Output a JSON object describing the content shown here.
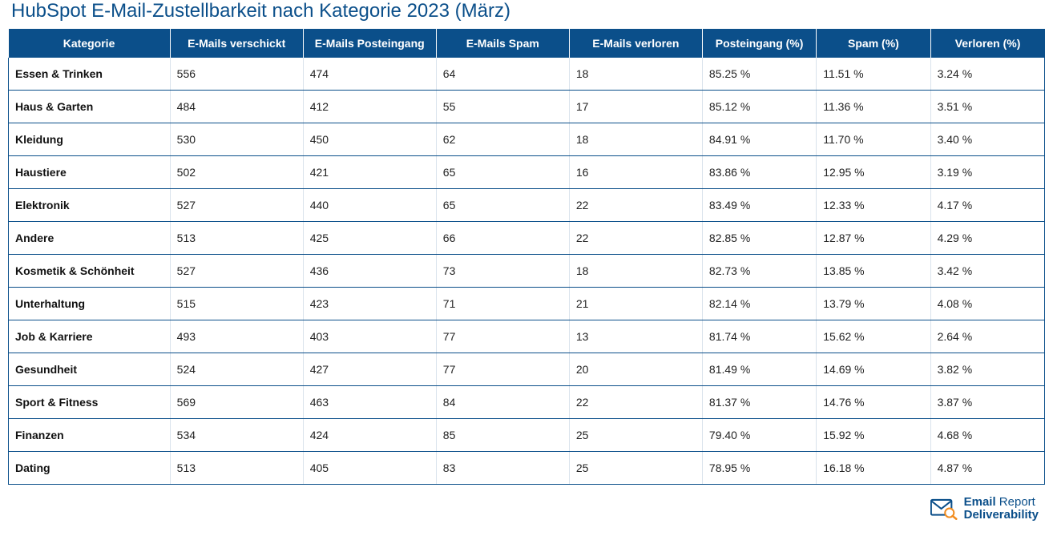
{
  "title": "HubSpot E-Mail-Zustellbarkeit nach Kategorie 2023 (März)",
  "colors": {
    "header_bg": "#0b4f8a",
    "header_text": "#ffffff",
    "title_text": "#0b4f8a",
    "row_border": "#0b4f8a",
    "cell_divider": "#d9e2ec",
    "body_text": "#222222",
    "logo_primary": "#0b4f8a",
    "logo_accent": "#f28c1f"
  },
  "columns": [
    "Kategorie",
    "E-Mails verschickt",
    "E-Mails Posteingang",
    "E-Mails Spam",
    "E-Mails verloren",
    "Posteingang (%)",
    "Spam (%)",
    "Verloren (%)"
  ],
  "rows": [
    [
      "Essen & Trinken",
      "556",
      "474",
      "64",
      "18",
      "85.25 %",
      "11.51 %",
      "3.24 %"
    ],
    [
      "Haus & Garten",
      "484",
      "412",
      "55",
      "17",
      "85.12 %",
      "11.36 %",
      "3.51 %"
    ],
    [
      "Kleidung",
      "530",
      "450",
      "62",
      "18",
      "84.91 %",
      "11.70 %",
      "3.40 %"
    ],
    [
      "Haustiere",
      "502",
      "421",
      "65",
      "16",
      "83.86 %",
      "12.95 %",
      "3.19 %"
    ],
    [
      "Elektronik",
      "527",
      "440",
      "65",
      "22",
      "83.49 %",
      "12.33 %",
      "4.17 %"
    ],
    [
      "Andere",
      "513",
      "425",
      "66",
      "22",
      "82.85 %",
      "12.87 %",
      "4.29 %"
    ],
    [
      "Kosmetik & Schönheit",
      "527",
      "436",
      "73",
      "18",
      "82.73 %",
      "13.85 %",
      "3.42 %"
    ],
    [
      "Unterhaltung",
      "515",
      "423",
      "71",
      "21",
      "82.14 %",
      "13.79 %",
      "4.08 %"
    ],
    [
      "Job & Karriere",
      "493",
      "403",
      "77",
      "13",
      "81.74 %",
      "15.62 %",
      "2.64 %"
    ],
    [
      "Gesundheit",
      "524",
      "427",
      "77",
      "20",
      "81.49 %",
      "14.69 %",
      "3.82 %"
    ],
    [
      "Sport & Fitness",
      "569",
      "463",
      "84",
      "22",
      "81.37 %",
      "14.76 %",
      "3.87 %"
    ],
    [
      "Finanzen",
      "534",
      "424",
      "85",
      "25",
      "79.40 %",
      "15.92 %",
      "4.68 %"
    ],
    [
      "Dating",
      "513",
      "405",
      "83",
      "25",
      "78.95 %",
      "16.18 %",
      "4.87 %"
    ]
  ],
  "logo": {
    "line1_bold": "Email",
    "line1_light": " Report",
    "line2": "Deliverability"
  }
}
